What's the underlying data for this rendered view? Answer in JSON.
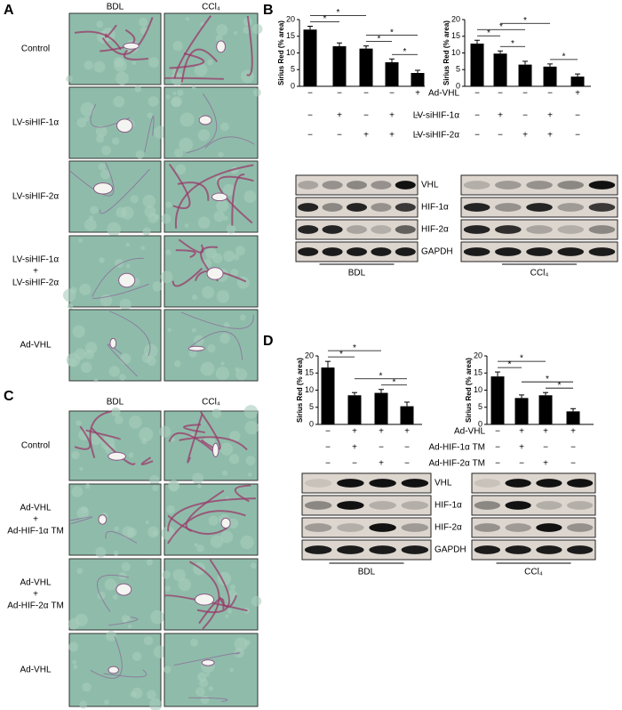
{
  "panel_labels": [
    "A",
    "B",
    "C",
    "D"
  ],
  "panel_a": {
    "columns": [
      "BDL",
      "CCl₄"
    ],
    "rows": [
      [
        "Control"
      ],
      [
        "LV-siHIF-1α"
      ],
      [
        "LV-siHIF-2α"
      ],
      [
        "LV-siHIF-1α",
        "+",
        "LV-siHIF-2α"
      ],
      [
        "Ad-VHL"
      ]
    ]
  },
  "panel_c": {
    "columns": [
      "BDL",
      "CCl₄"
    ],
    "rows": [
      [
        "Control"
      ],
      [
        "Ad-VHL",
        "+",
        "Ad-HIF-1α TM"
      ],
      [
        "Ad-VHL",
        "+",
        "Ad-HIF-2α TM"
      ],
      [
        "Ad-VHL"
      ]
    ]
  },
  "panel_b": {
    "conditions": [
      "Ad-VHL",
      "LV-siHIF-1α",
      "LV-siHIF-2α"
    ],
    "blot": {
      "proteins": [
        "VHL",
        "HIF-1α",
        "HIF-2α",
        "GAPDH"
      ],
      "groups": [
        "BDL",
        "CCl₄"
      ]
    }
  },
  "panel_d": {
    "conditions": [
      "Ad-VHL",
      "Ad-HIF-1α TM",
      "Ad-HIF-2α TM"
    ],
    "blot": {
      "proteins": [
        "VHL",
        "HIF-1α",
        "HIF-2α",
        "GAPDH"
      ],
      "groups": [
        "BDL",
        "CCl₄"
      ]
    }
  },
  "chart_data": [
    {
      "type": "bar",
      "ylabel": "Sirius Red (% area)",
      "color": "#000000",
      "values": [
        17,
        12,
        11.3,
        7.2,
        4
      ],
      "errors": [
        1,
        1,
        0.8,
        1,
        0.8
      ],
      "ylim": [
        0,
        20
      ],
      "yticks": [
        0,
        5,
        10,
        15,
        20
      ],
      "signs": [
        [
          "−",
          "−",
          "−",
          "−",
          "+"
        ],
        [
          "−",
          "+",
          "−",
          "+",
          "−"
        ],
        [
          "−",
          "−",
          "+",
          "+",
          "−"
        ]
      ],
      "significance": [
        {
          "bars": [
            0,
            1
          ],
          "label": "*"
        },
        {
          "bars": [
            0,
            2
          ],
          "label": "*"
        },
        {
          "bars": [
            3,
            4
          ],
          "label": "*"
        },
        {
          "bars": [
            2,
            3
          ],
          "label": "*"
        },
        {
          "bars": [
            2,
            4
          ],
          "label": "*"
        }
      ]
    },
    {
      "type": "bar",
      "ylabel": "Sirius Red (% area)",
      "color": "#000000",
      "values": [
        12.8,
        9.8,
        6.5,
        5.9,
        2.9
      ],
      "errors": [
        1,
        0.8,
        1,
        0.8,
        0.8
      ],
      "ylim": [
        0,
        20
      ],
      "yticks": [
        0,
        5,
        10,
        15,
        20
      ],
      "signs": [
        [
          "−",
          "−",
          "−",
          "−",
          "+"
        ],
        [
          "−",
          "+",
          "−",
          "+",
          "−"
        ],
        [
          "−",
          "−",
          "+",
          "+",
          "−"
        ]
      ],
      "significance": [
        {
          "bars": [
            0,
            1
          ],
          "label": "*"
        },
        {
          "bars": [
            0,
            2
          ],
          "label": "*"
        },
        {
          "bars": [
            3,
            4
          ],
          "label": "*"
        },
        {
          "bars": [
            1,
            2
          ],
          "label": "*"
        },
        {
          "bars": [
            1,
            3
          ],
          "label": "*"
        }
      ]
    },
    {
      "type": "bar",
      "ylabel": "Sirius Red (% area)",
      "color": "#000000",
      "values": [
        16.6,
        8.5,
        9.2,
        5.3
      ],
      "errors": [
        1.8,
        0.8,
        1,
        1.2
      ],
      "ylim": [
        0,
        20
      ],
      "yticks": [
        0,
        5,
        10,
        15,
        20
      ],
      "signs": [
        [
          "−",
          "+",
          "+",
          "+"
        ],
        [
          "−",
          "+",
          "−",
          "−"
        ],
        [
          "−",
          "−",
          "+",
          "−"
        ]
      ],
      "significance": [
        {
          "bars": [
            0,
            1
          ],
          "label": "*"
        },
        {
          "bars": [
            0,
            2
          ],
          "label": "*"
        },
        {
          "bars": [
            2,
            3
          ],
          "label": "*"
        },
        {
          "bars": [
            1,
            3
          ],
          "label": "*"
        }
      ]
    },
    {
      "type": "bar",
      "ylabel": "Sirius Red (% area)",
      "color": "#000000",
      "values": [
        14,
        7.7,
        8.5,
        3.8
      ],
      "errors": [
        1.3,
        0.9,
        0.8,
        0.8
      ],
      "ylim": [
        0,
        20
      ],
      "yticks": [
        0,
        5,
        10,
        15,
        20
      ],
      "signs": [
        [
          "−",
          "+",
          "+",
          "+"
        ],
        [
          "−",
          "+",
          "−",
          "−"
        ],
        [
          "−",
          "−",
          "+",
          "−"
        ]
      ],
      "significance": [
        {
          "bars": [
            0,
            1
          ],
          "label": "*"
        },
        {
          "bars": [
            0,
            2
          ],
          "label": "*"
        },
        {
          "bars": [
            2,
            3
          ],
          "label": "*"
        },
        {
          "bars": [
            1,
            3
          ],
          "label": "*"
        }
      ]
    }
  ]
}
